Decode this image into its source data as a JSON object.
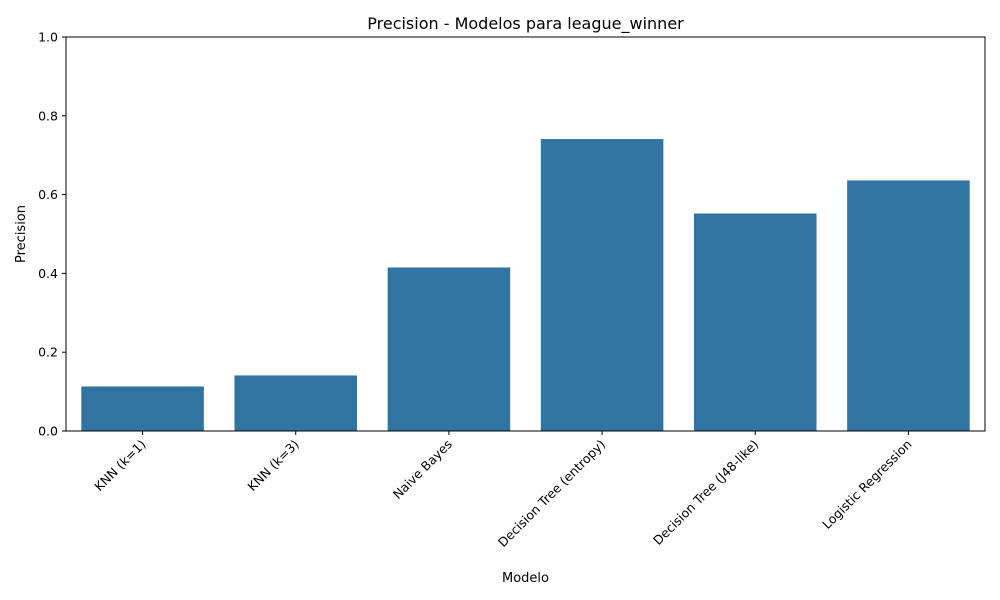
{
  "chart_data": {
    "type": "bar",
    "title": "Precision - Modelos para league_winner",
    "xlabel": "Modelo",
    "ylabel": "Precision",
    "categories": [
      "KNN (k=1)",
      "KNN (k=3)",
      "Naive Bayes",
      "Decision Tree (entropy)",
      "Decision Tree (J48-like)",
      "Logistic Regression"
    ],
    "values": [
      0.113,
      0.141,
      0.415,
      0.741,
      0.552,
      0.636
    ],
    "ylim": [
      0,
      1
    ],
    "yticks": [
      "0.0",
      "0.2",
      "0.4",
      "0.6",
      "0.8",
      "1.0"
    ],
    "tick_label_rotation_deg": 45,
    "grid": false,
    "legend": "none",
    "bar_color": "#3274a1"
  }
}
